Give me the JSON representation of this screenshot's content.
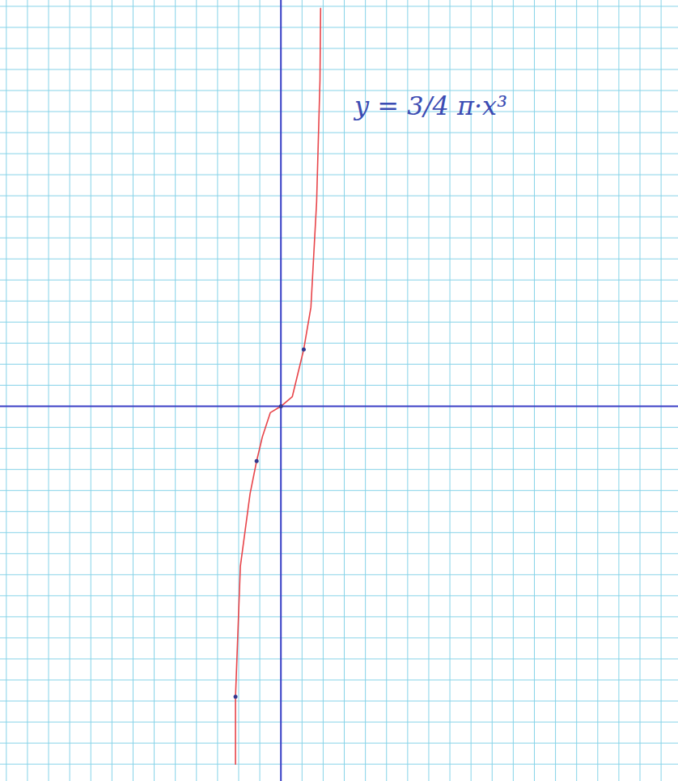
{
  "chart_data": {
    "type": "line",
    "title": "y = 3/4 π·x³",
    "xlim": [
      -13.3,
      18.8
    ],
    "ylim": [
      -17.8,
      19.3
    ],
    "xticks": [
      -13,
      -12,
      -11,
      -10,
      -9,
      -8,
      -7,
      -6,
      -5,
      -4,
      -3,
      -2,
      -1,
      0,
      1,
      2,
      3,
      4,
      5,
      6,
      7,
      8,
      9,
      10,
      11,
      12,
      13,
      14,
      15,
      16,
      17,
      18
    ],
    "yticks": [
      -17,
      -16,
      -15,
      -14,
      -13,
      -12,
      -11,
      -10,
      -9,
      -8,
      -7,
      -6,
      -5,
      -4,
      -3,
      -2,
      -1,
      0,
      1,
      2,
      3,
      4,
      5,
      6,
      7,
      8,
      9,
      10,
      11,
      12,
      13,
      14,
      15,
      16,
      17,
      18,
      19
    ],
    "grid": true,
    "tick_labels": false,
    "series": [
      {
        "type": "line",
        "color": "#e8454a",
        "line_style": "solid",
        "x": [
          -2.15,
          -2.15,
          -1.92,
          -1.46,
          -1.15,
          -0.88,
          -0.5,
          0,
          0.54,
          1.08,
          1.42,
          1.69,
          1.85,
          1.88
        ],
        "values": [
          -17.0,
          -13.8,
          -7.6,
          -4.15,
          -2.6,
          -1.46,
          -0.3,
          0,
          0.46,
          2.7,
          4.7,
          9.7,
          15.5,
          18.9
        ]
      },
      {
        "type": "scatter",
        "color": "#33388f",
        "marker": "circle",
        "x": [
          -2.15,
          -1.15,
          0,
          1.08
        ],
        "values": [
          -13.8,
          -2.6,
          0,
          2.7
        ]
      }
    ]
  }
}
